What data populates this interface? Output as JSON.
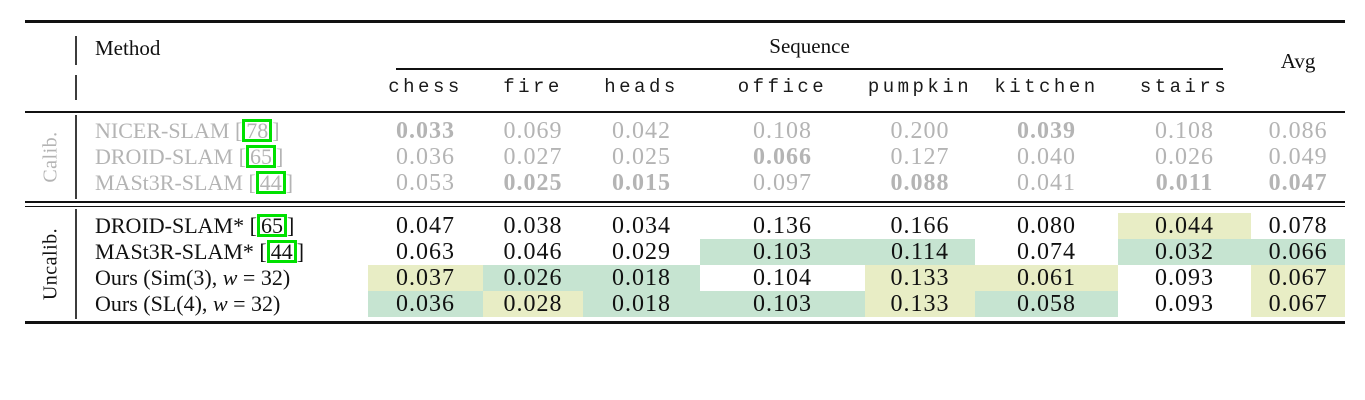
{
  "table": {
    "header": {
      "method": "Method",
      "sequence_group": "Sequence",
      "avg": "Avg",
      "sequences": [
        "chess",
        "fire",
        "heads",
        "office",
        "pumpkin",
        "kitchen",
        "stairs"
      ]
    },
    "citation_brackets": {
      "open": "[",
      "close": "]"
    },
    "groups": [
      {
        "label": "Calib.",
        "muted": true,
        "rows": [
          {
            "method": [
              {
                "t": "NICER-SLAM "
              }
            ],
            "cite": "78",
            "cells": [
              {
                "v": "0.033",
                "b": true
              },
              {
                "v": "0.069"
              },
              {
                "v": "0.042"
              },
              {
                "v": "0.108"
              },
              {
                "v": "0.200"
              },
              {
                "v": "0.039",
                "b": true
              },
              {
                "v": "0.108"
              },
              {
                "v": "0.086"
              }
            ]
          },
          {
            "method": [
              {
                "t": "DROID-SLAM "
              }
            ],
            "cite": "65",
            "cells": [
              {
                "v": "0.036"
              },
              {
                "v": "0.027"
              },
              {
                "v": "0.025"
              },
              {
                "v": "0.066",
                "b": true
              },
              {
                "v": "0.127"
              },
              {
                "v": "0.040"
              },
              {
                "v": "0.026"
              },
              {
                "v": "0.049"
              }
            ]
          },
          {
            "method": [
              {
                "t": "MASt3R-SLAM "
              }
            ],
            "cite": "44",
            "cells": [
              {
                "v": "0.053"
              },
              {
                "v": "0.025",
                "b": true
              },
              {
                "v": "0.015",
                "b": true
              },
              {
                "v": "0.097"
              },
              {
                "v": "0.088",
                "b": true
              },
              {
                "v": "0.041"
              },
              {
                "v": "0.011",
                "b": true
              },
              {
                "v": "0.047",
                "b": true
              }
            ]
          }
        ]
      },
      {
        "label": "Uncalib.",
        "muted": false,
        "rows": [
          {
            "method": [
              {
                "t": "DROID-SLAM* "
              }
            ],
            "cite": "65",
            "cells": [
              {
                "v": "0.047"
              },
              {
                "v": "0.038"
              },
              {
                "v": "0.034"
              },
              {
                "v": "0.136"
              },
              {
                "v": "0.166"
              },
              {
                "v": "0.080"
              },
              {
                "v": "0.044",
                "hl": "second"
              },
              {
                "v": "0.078"
              }
            ]
          },
          {
            "method": [
              {
                "t": "MASt3R-SLAM* "
              }
            ],
            "cite": "44",
            "cells": [
              {
                "v": "0.063"
              },
              {
                "v": "0.046"
              },
              {
                "v": "0.029"
              },
              {
                "v": "0.103",
                "hl": "best"
              },
              {
                "v": "0.114",
                "hl": "best"
              },
              {
                "v": "0.074"
              },
              {
                "v": "0.032",
                "hl": "best"
              },
              {
                "v": "0.066",
                "hl": "best"
              }
            ]
          },
          {
            "method": [
              {
                "t": "Ours (Sim(3), "
              },
              {
                "t": "w",
                "i": true
              },
              {
                "t": " = 32)"
              }
            ],
            "cite": null,
            "cells": [
              {
                "v": "0.037",
                "hl": "second"
              },
              {
                "v": "0.026",
                "hl": "best"
              },
              {
                "v": "0.018",
                "hl": "best"
              },
              {
                "v": "0.104"
              },
              {
                "v": "0.133",
                "hl": "second"
              },
              {
                "v": "0.061",
                "hl": "second"
              },
              {
                "v": "0.093"
              },
              {
                "v": "0.067",
                "hl": "second"
              }
            ]
          },
          {
            "method": [
              {
                "t": "Ours (SL(4), "
              },
              {
                "t": "w",
                "i": true
              },
              {
                "t": " = 32)"
              }
            ],
            "cite": null,
            "cells": [
              {
                "v": "0.036",
                "hl": "best"
              },
              {
                "v": "0.028",
                "hl": "second"
              },
              {
                "v": "0.018",
                "hl": "best"
              },
              {
                "v": "0.103",
                "hl": "best"
              },
              {
                "v": "0.133",
                "hl": "second"
              },
              {
                "v": "0.058",
                "hl": "best"
              },
              {
                "v": "0.093"
              },
              {
                "v": "0.067",
                "hl": "second"
              }
            ]
          }
        ]
      }
    ],
    "colors": {
      "best": "#c6e4d1",
      "second": "#e8edc5",
      "muted_text": "#b4b4b4",
      "citation_box": "#00e100",
      "rule": "#111111"
    }
  }
}
